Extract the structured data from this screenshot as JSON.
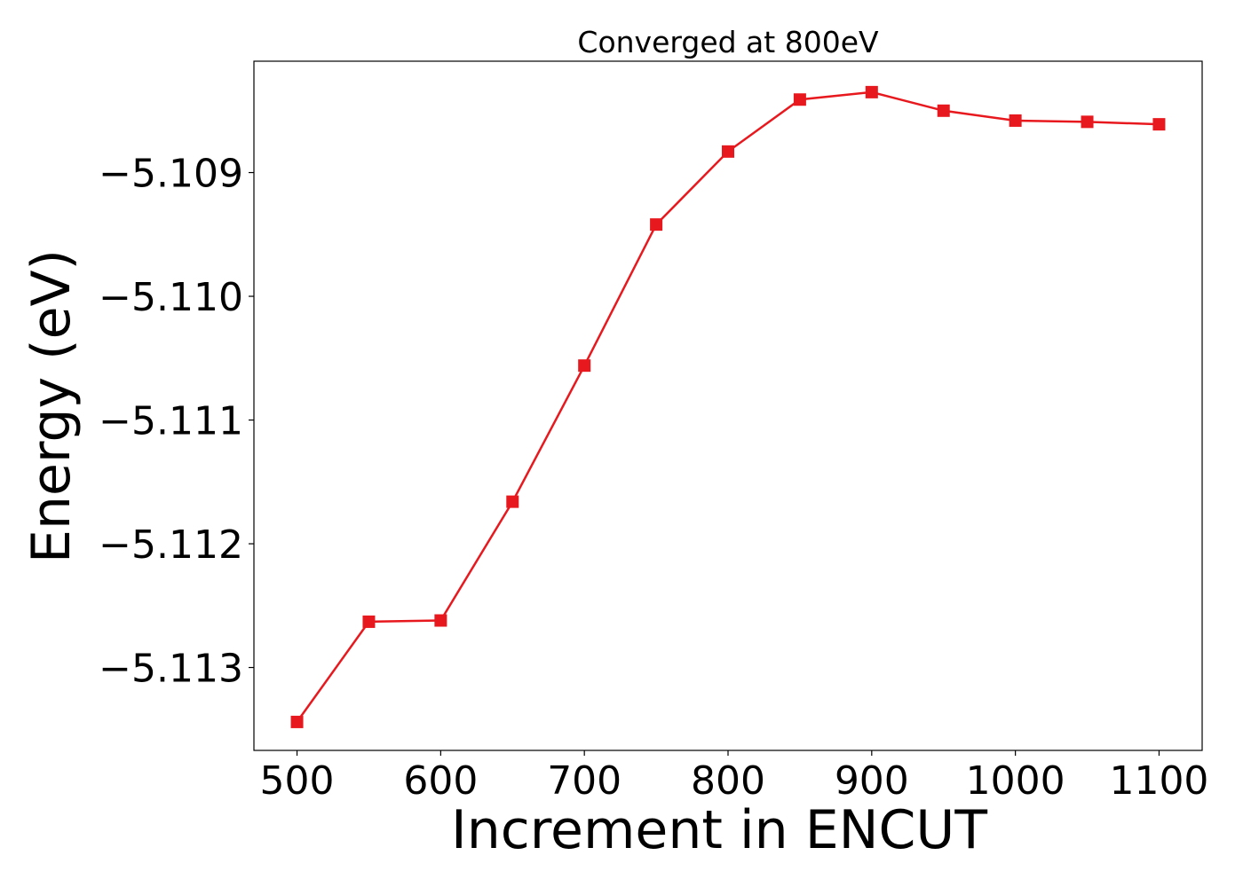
{
  "chart_data": {
    "type": "line",
    "title": "Converged at 800eV",
    "xlabel": "Increment in ENCUT",
    "ylabel": "Energy (eV)",
    "x": [
      500,
      550,
      600,
      650,
      700,
      750,
      800,
      850,
      900,
      950,
      1000,
      1050,
      1100
    ],
    "series": [
      {
        "values": [
          -5.11344,
          -5.11263,
          -5.11262,
          -5.11166,
          -5.11056,
          -5.10942,
          -5.10883,
          -5.10841,
          -5.10835,
          -5.1085,
          -5.10858,
          -5.10859,
          -5.10861
        ],
        "color": "#e8191e",
        "marker": "square"
      }
    ],
    "xlim": [
      470,
      1130
    ],
    "ylim": [
      -5.11367,
      -5.1081
    ],
    "xticks": [
      500,
      600,
      700,
      800,
      900,
      1000,
      1100
    ],
    "xtick_labels": [
      "500",
      "600",
      "700",
      "800",
      "900",
      "1000",
      "1100"
    ],
    "yticks": [
      -5.109,
      -5.11,
      -5.111,
      -5.112,
      -5.113
    ],
    "ytick_labels": [
      "−5.109",
      "−5.110",
      "−5.111",
      "−5.112",
      "−5.113"
    ],
    "grid": false,
    "legend": "none"
  }
}
